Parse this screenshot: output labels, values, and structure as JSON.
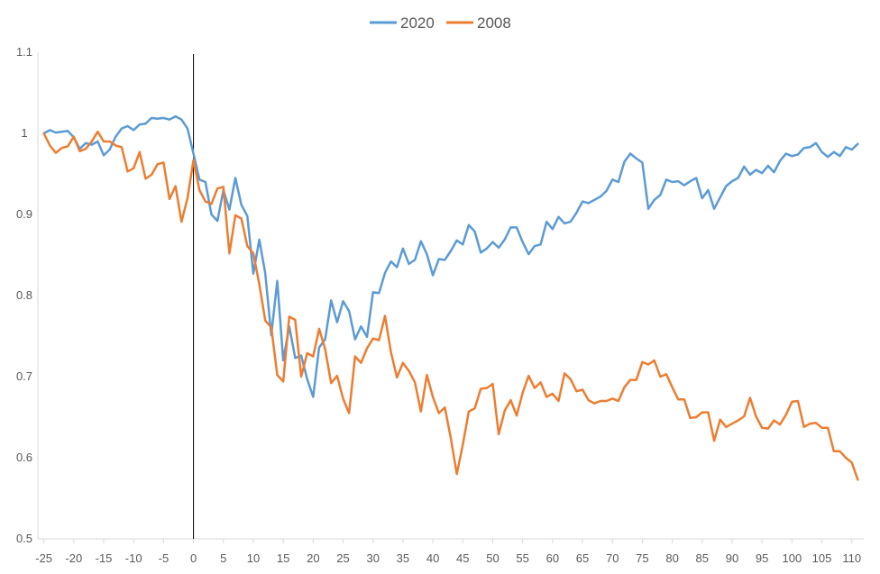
{
  "chart_data": {
    "type": "line",
    "legend_position": "top",
    "grid": false,
    "xlim": [
      -26,
      112
    ],
    "ylim": [
      0.5,
      1.1
    ],
    "x_ticks": [
      -25,
      -20,
      -15,
      -10,
      -5,
      0,
      5,
      10,
      15,
      20,
      25,
      30,
      35,
      40,
      45,
      50,
      55,
      60,
      65,
      70,
      75,
      80,
      85,
      90,
      95,
      100,
      105,
      110
    ],
    "y_ticks": [
      0.5,
      0.6,
      0.7,
      0.8,
      0.9,
      1,
      1.1
    ],
    "y_tick_labels": [
      "0.5",
      "0.6",
      "0.7",
      "0.8",
      "0.9",
      "1",
      "1.1"
    ],
    "reference_line_x": 0,
    "series": [
      {
        "name": "2020",
        "color": "#5B9BD5",
        "points": [
          [
            -25,
            1.0
          ],
          [
            -24,
            1.004
          ],
          [
            -23,
            1.001
          ],
          [
            -22,
            1.002
          ],
          [
            -21,
            1.003
          ],
          [
            -20,
            0.995
          ],
          [
            -19,
            0.981
          ],
          [
            -18,
            0.988
          ],
          [
            -17,
            0.986
          ],
          [
            -16,
            0.99
          ],
          [
            -15,
            0.973
          ],
          [
            -14,
            0.98
          ],
          [
            -13,
            0.996
          ],
          [
            -12,
            1.006
          ],
          [
            -11,
            1.009
          ],
          [
            -10,
            1.004
          ],
          [
            -9,
            1.011
          ],
          [
            -8,
            1.012
          ],
          [
            -7,
            1.019
          ],
          [
            -6,
            1.018
          ],
          [
            -5,
            1.019
          ],
          [
            -4,
            1.017
          ],
          [
            -3,
            1.021
          ],
          [
            -2,
            1.017
          ],
          [
            -1,
            1.006
          ],
          [
            0,
            0.975
          ],
          [
            1,
            0.943
          ],
          [
            2,
            0.94
          ],
          [
            3,
            0.9
          ],
          [
            4,
            0.892
          ],
          [
            5,
            0.93
          ],
          [
            6,
            0.906
          ],
          [
            7,
            0.945
          ],
          [
            8,
            0.912
          ],
          [
            9,
            0.898
          ],
          [
            10,
            0.827
          ],
          [
            11,
            0.869
          ],
          [
            12,
            0.827
          ],
          [
            13,
            0.751
          ],
          [
            14,
            0.818
          ],
          [
            15,
            0.72
          ],
          [
            16,
            0.762
          ],
          [
            17,
            0.723
          ],
          [
            18,
            0.726
          ],
          [
            19,
            0.697
          ],
          [
            20,
            0.675
          ],
          [
            21,
            0.736
          ],
          [
            22,
            0.746
          ],
          [
            23,
            0.794
          ],
          [
            24,
            0.767
          ],
          [
            25,
            0.793
          ],
          [
            26,
            0.781
          ],
          [
            27,
            0.746
          ],
          [
            28,
            0.762
          ],
          [
            29,
            0.749
          ],
          [
            30,
            0.804
          ],
          [
            31,
            0.803
          ],
          [
            32,
            0.828
          ],
          [
            33,
            0.842
          ],
          [
            34,
            0.835
          ],
          [
            35,
            0.858
          ],
          [
            36,
            0.839
          ],
          [
            37,
            0.844
          ],
          [
            38,
            0.867
          ],
          [
            39,
            0.851
          ],
          [
            40,
            0.825
          ],
          [
            41,
            0.845
          ],
          [
            42,
            0.844
          ],
          [
            43,
            0.855
          ],
          [
            44,
            0.868
          ],
          [
            45,
            0.863
          ],
          [
            46,
            0.887
          ],
          [
            47,
            0.879
          ],
          [
            48,
            0.853
          ],
          [
            49,
            0.858
          ],
          [
            50,
            0.866
          ],
          [
            51,
            0.859
          ],
          [
            52,
            0.869
          ],
          [
            53,
            0.884
          ],
          [
            54,
            0.884
          ],
          [
            55,
            0.866
          ],
          [
            56,
            0.851
          ],
          [
            57,
            0.861
          ],
          [
            58,
            0.863
          ],
          [
            59,
            0.891
          ],
          [
            60,
            0.882
          ],
          [
            61,
            0.897
          ],
          [
            62,
            0.889
          ],
          [
            63,
            0.891
          ],
          [
            64,
            0.902
          ],
          [
            65,
            0.916
          ],
          [
            66,
            0.914
          ],
          [
            67,
            0.918
          ],
          [
            68,
            0.922
          ],
          [
            69,
            0.929
          ],
          [
            70,
            0.943
          ],
          [
            71,
            0.94
          ],
          [
            72,
            0.965
          ],
          [
            73,
            0.975
          ],
          [
            74,
            0.969
          ],
          [
            75,
            0.964
          ],
          [
            76,
            0.907
          ],
          [
            77,
            0.918
          ],
          [
            78,
            0.924
          ],
          [
            79,
            0.943
          ],
          [
            80,
            0.94
          ],
          [
            81,
            0.941
          ],
          [
            82,
            0.936
          ],
          [
            83,
            0.941
          ],
          [
            84,
            0.945
          ],
          [
            85,
            0.92
          ],
          [
            86,
            0.93
          ],
          [
            87,
            0.907
          ],
          [
            88,
            0.921
          ],
          [
            89,
            0.935
          ],
          [
            90,
            0.941
          ],
          [
            91,
            0.945
          ],
          [
            92,
            0.959
          ],
          [
            93,
            0.949
          ],
          [
            94,
            0.955
          ],
          [
            95,
            0.951
          ],
          [
            96,
            0.96
          ],
          [
            97,
            0.952
          ],
          [
            98,
            0.966
          ],
          [
            99,
            0.975
          ],
          [
            100,
            0.972
          ],
          [
            101,
            0.974
          ],
          [
            102,
            0.982
          ],
          [
            103,
            0.983
          ],
          [
            104,
            0.988
          ],
          [
            105,
            0.977
          ],
          [
            106,
            0.971
          ],
          [
            107,
            0.977
          ],
          [
            108,
            0.972
          ],
          [
            109,
            0.983
          ],
          [
            110,
            0.98
          ],
          [
            111,
            0.987
          ]
        ]
      },
      {
        "name": "2008",
        "color": "#ED7D31",
        "points": [
          [
            -25,
            1.0
          ],
          [
            -24,
            0.985
          ],
          [
            -23,
            0.976
          ],
          [
            -22,
            0.982
          ],
          [
            -21,
            0.984
          ],
          [
            -20,
            0.996
          ],
          [
            -19,
            0.978
          ],
          [
            -18,
            0.981
          ],
          [
            -17,
            0.99
          ],
          [
            -16,
            1.002
          ],
          [
            -15,
            0.99
          ],
          [
            -14,
            0.99
          ],
          [
            -13,
            0.985
          ],
          [
            -12,
            0.983
          ],
          [
            -11,
            0.953
          ],
          [
            -10,
            0.957
          ],
          [
            -9,
            0.977
          ],
          [
            -8,
            0.944
          ],
          [
            -7,
            0.949
          ],
          [
            -6,
            0.962
          ],
          [
            -5,
            0.964
          ],
          [
            -4,
            0.919
          ],
          [
            -3,
            0.935
          ],
          [
            -2,
            0.891
          ],
          [
            -1,
            0.92
          ],
          [
            0,
            0.967
          ],
          [
            1,
            0.93
          ],
          [
            2,
            0.916
          ],
          [
            3,
            0.913
          ],
          [
            4,
            0.932
          ],
          [
            5,
            0.934
          ],
          [
            6,
            0.852
          ],
          [
            7,
            0.899
          ],
          [
            8,
            0.895
          ],
          [
            9,
            0.861
          ],
          [
            10,
            0.852
          ],
          [
            11,
            0.814
          ],
          [
            12,
            0.769
          ],
          [
            13,
            0.761
          ],
          [
            14,
            0.702
          ],
          [
            15,
            0.694
          ],
          [
            16,
            0.774
          ],
          [
            17,
            0.77
          ],
          [
            18,
            0.7
          ],
          [
            19,
            0.729
          ],
          [
            20,
            0.725
          ],
          [
            21,
            0.759
          ],
          [
            22,
            0.734
          ],
          [
            23,
            0.692
          ],
          [
            24,
            0.701
          ],
          [
            25,
            0.673
          ],
          [
            26,
            0.655
          ],
          [
            27,
            0.725
          ],
          [
            28,
            0.717
          ],
          [
            29,
            0.735
          ],
          [
            30,
            0.747
          ],
          [
            31,
            0.745
          ],
          [
            32,
            0.775
          ],
          [
            33,
            0.73
          ],
          [
            34,
            0.699
          ],
          [
            35,
            0.717
          ],
          [
            36,
            0.707
          ],
          [
            37,
            0.693
          ],
          [
            38,
            0.657
          ],
          [
            39,
            0.702
          ],
          [
            40,
            0.675
          ],
          [
            41,
            0.655
          ],
          [
            42,
            0.662
          ],
          [
            43,
            0.624
          ],
          [
            44,
            0.58
          ],
          [
            45,
            0.616
          ],
          [
            46,
            0.657
          ],
          [
            47,
            0.661
          ],
          [
            48,
            0.685
          ],
          [
            49,
            0.686
          ],
          [
            50,
            0.691
          ],
          [
            51,
            0.629
          ],
          [
            52,
            0.658
          ],
          [
            53,
            0.671
          ],
          [
            54,
            0.652
          ],
          [
            55,
            0.68
          ],
          [
            56,
            0.701
          ],
          [
            57,
            0.686
          ],
          [
            58,
            0.693
          ],
          [
            59,
            0.675
          ],
          [
            60,
            0.679
          ],
          [
            61,
            0.67
          ],
          [
            62,
            0.704
          ],
          [
            63,
            0.697
          ],
          [
            64,
            0.682
          ],
          [
            65,
            0.684
          ],
          [
            66,
            0.671
          ],
          [
            67,
            0.667
          ],
          [
            68,
            0.67
          ],
          [
            69,
            0.67
          ],
          [
            70,
            0.673
          ],
          [
            71,
            0.67
          ],
          [
            72,
            0.687
          ],
          [
            73,
            0.696
          ],
          [
            74,
            0.696
          ],
          [
            75,
            0.718
          ],
          [
            76,
            0.715
          ],
          [
            77,
            0.72
          ],
          [
            78,
            0.7
          ],
          [
            79,
            0.703
          ],
          [
            80,
            0.687
          ],
          [
            81,
            0.672
          ],
          [
            82,
            0.672
          ],
          [
            83,
            0.649
          ],
          [
            84,
            0.65
          ],
          [
            85,
            0.656
          ],
          [
            86,
            0.656
          ],
          [
            87,
            0.621
          ],
          [
            88,
            0.647
          ],
          [
            89,
            0.638
          ],
          [
            90,
            0.642
          ],
          [
            91,
            0.646
          ],
          [
            92,
            0.651
          ],
          [
            93,
            0.674
          ],
          [
            94,
            0.651
          ],
          [
            95,
            0.637
          ],
          [
            96,
            0.636
          ],
          [
            97,
            0.646
          ],
          [
            98,
            0.641
          ],
          [
            99,
            0.653
          ],
          [
            100,
            0.669
          ],
          [
            101,
            0.67
          ],
          [
            102,
            0.638
          ],
          [
            103,
            0.642
          ],
          [
            104,
            0.643
          ],
          [
            105,
            0.637
          ],
          [
            106,
            0.637
          ],
          [
            107,
            0.608
          ],
          [
            108,
            0.608
          ],
          [
            109,
            0.6
          ],
          [
            110,
            0.594
          ],
          [
            111,
            0.573
          ]
        ]
      }
    ]
  }
}
